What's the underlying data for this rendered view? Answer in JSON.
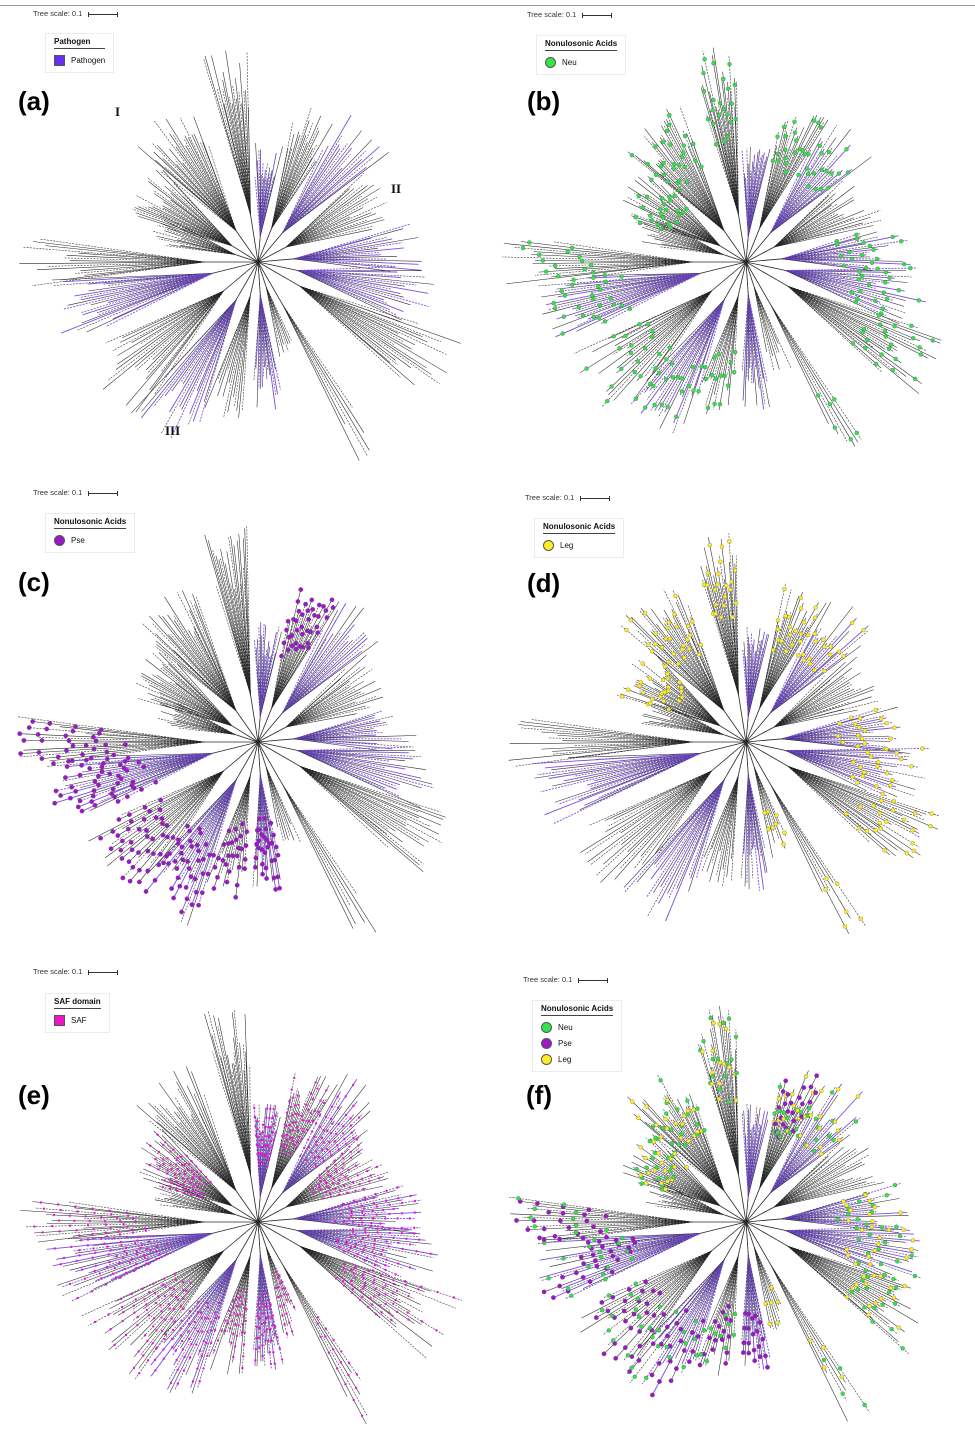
{
  "colors": {
    "branch": "#262626",
    "pathogen": "#7b4fe0",
    "neu": "#33e34a",
    "pse": "#9b18c9",
    "leg": "#ffee22",
    "saf": "#e01ad4"
  },
  "panels": [
    {
      "id": "a",
      "label": "(a)",
      "scale_text": "Tree scale: 0.1",
      "legend": {
        "title": "Pathogen",
        "items": [
          {
            "label": "Pathogen",
            "shape": "square",
            "color": "#6a2ef0"
          }
        ]
      },
      "clades": [
        "I",
        "II",
        "III"
      ],
      "markers": [],
      "saf": false
    },
    {
      "id": "b",
      "label": "(b)",
      "scale_text": "Tree scale: 0.1",
      "legend": {
        "title": "Nonulosonic Acids",
        "items": [
          {
            "label": "Neu",
            "shape": "circle",
            "color": "#33e34a"
          }
        ]
      },
      "clades": [],
      "markers": [
        "neu"
      ],
      "saf": false
    },
    {
      "id": "c",
      "label": "(c)",
      "scale_text": "Tree scale: 0.1",
      "legend": {
        "title": "Nonulosonic Acids",
        "items": [
          {
            "label": "Pse",
            "shape": "circle",
            "color": "#9b18c9"
          }
        ]
      },
      "clades": [],
      "markers": [
        "pse"
      ],
      "saf": false
    },
    {
      "id": "d",
      "label": "(d)",
      "scale_text": "Tree scale: 0.1",
      "legend": {
        "title": "Nonulosonic Acids",
        "items": [
          {
            "label": "Leg",
            "shape": "circle",
            "color": "#ffee22"
          }
        ]
      },
      "clades": [],
      "markers": [
        "leg"
      ],
      "saf": false
    },
    {
      "id": "e",
      "label": "(e)",
      "scale_text": "Tree scale: 0.1",
      "legend": {
        "title": "SAF domain",
        "items": [
          {
            "label": "SAF",
            "shape": "square",
            "color": "#ee14c8"
          }
        ]
      },
      "clades": [],
      "markers": [],
      "saf": true
    },
    {
      "id": "f",
      "label": "(f)",
      "scale_text": "Tree scale: 0.1",
      "legend": {
        "title": "Nonulosonic Acids",
        "items": [
          {
            "label": "Neu",
            "shape": "circle",
            "color": "#33e34a"
          },
          {
            "label": "Pse",
            "shape": "circle",
            "color": "#9b18c9"
          },
          {
            "label": "Leg",
            "shape": "circle",
            "color": "#ffee22"
          }
        ]
      },
      "clades": [],
      "markers": [
        "neu",
        "pse",
        "leg"
      ],
      "saf": false
    }
  ]
}
